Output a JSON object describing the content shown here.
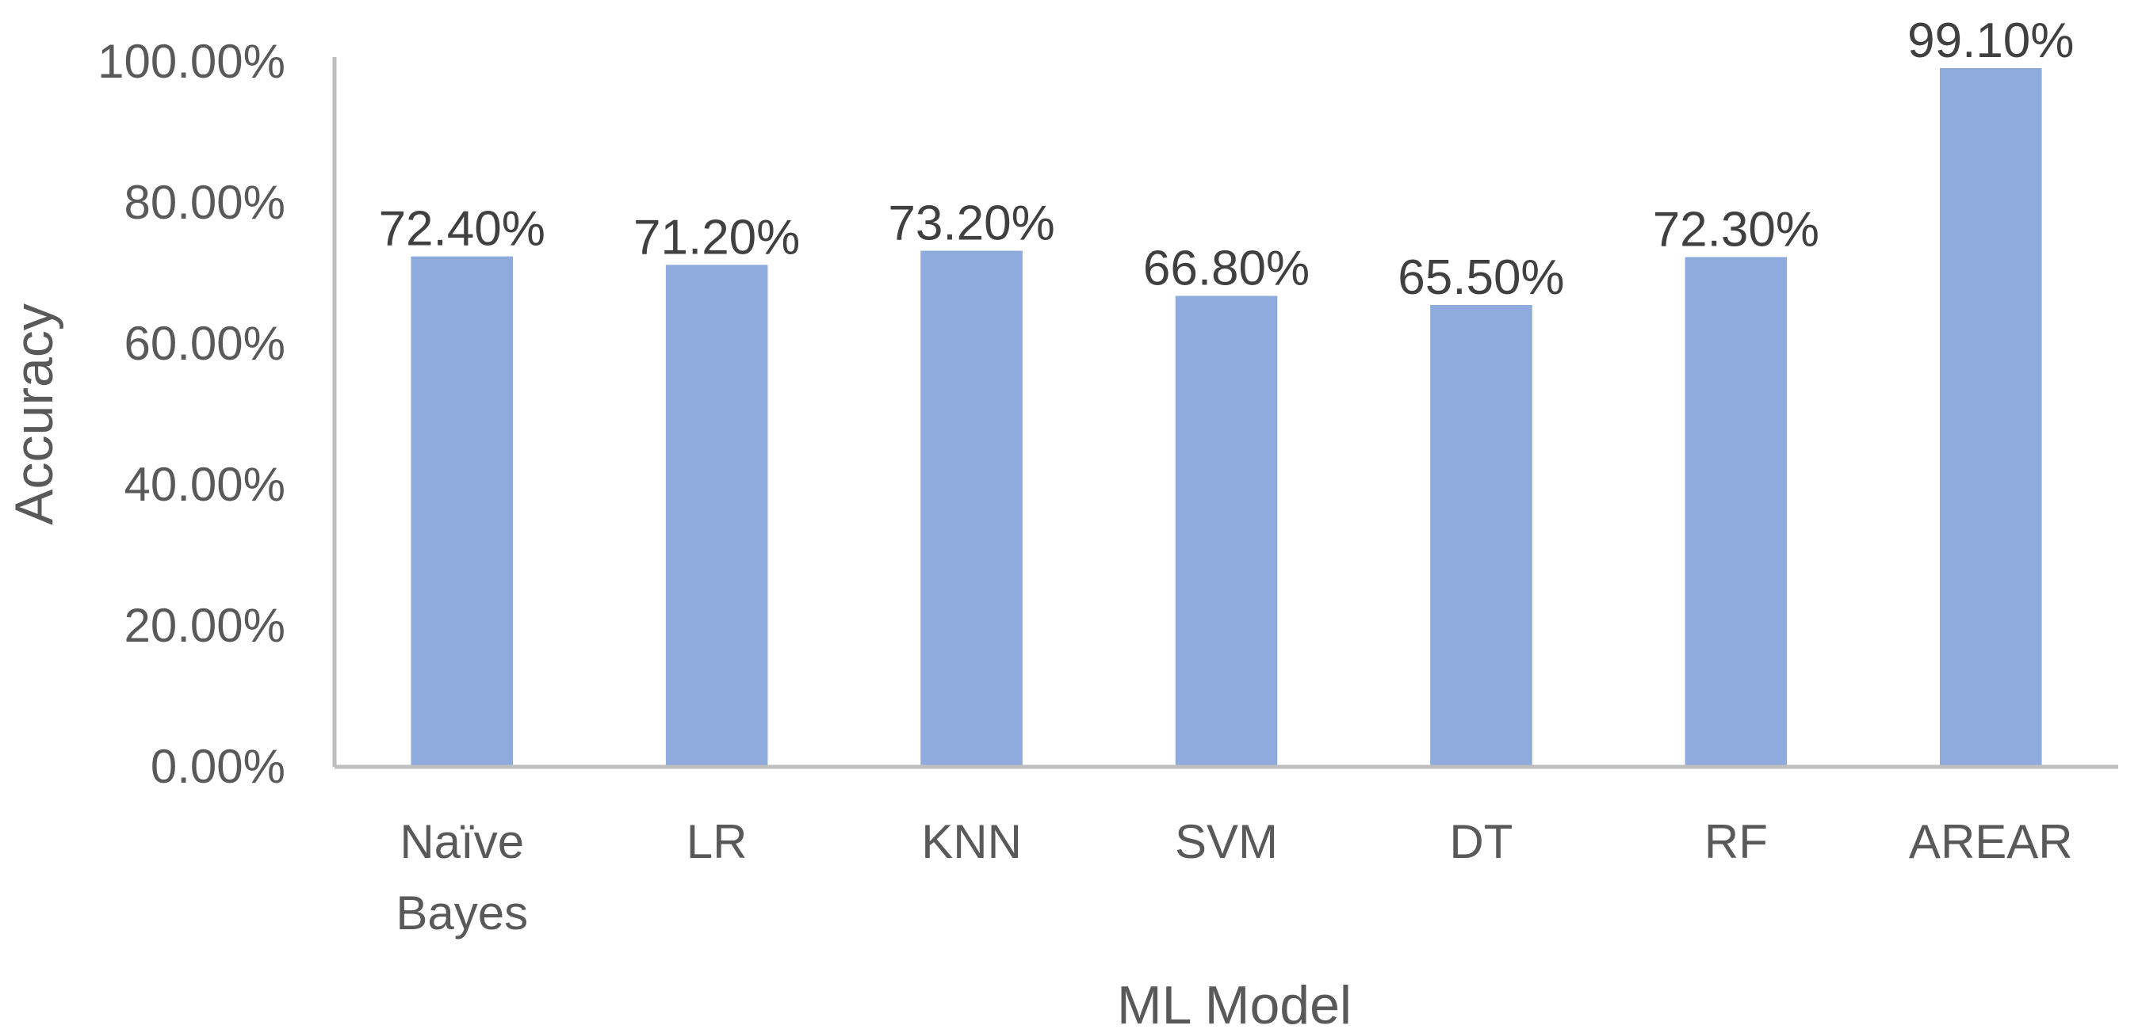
{
  "chart_data": {
    "type": "bar",
    "title": "",
    "xlabel": "ML Model",
    "ylabel": "Accuracy",
    "categories": [
      [
        "Naïve",
        "Bayes"
      ],
      [
        "LR"
      ],
      [
        "KNN"
      ],
      [
        "SVM"
      ],
      [
        "DT"
      ],
      [
        "RF"
      ],
      [
        "AREAR"
      ]
    ],
    "values": [
      72.4,
      71.2,
      73.2,
      66.8,
      65.5,
      72.3,
      99.1
    ],
    "data_labels": [
      "72.40%",
      "71.20%",
      "73.20%",
      "66.80%",
      "65.50%",
      "72.30%",
      "99.10%"
    ],
    "ylim": [
      0,
      100
    ],
    "yticks": [
      {
        "value": 0,
        "label": "0.00%"
      },
      {
        "value": 20,
        "label": "20.00%"
      },
      {
        "value": 40,
        "label": "40.00%"
      },
      {
        "value": 60,
        "label": "60.00%"
      },
      {
        "value": 80,
        "label": "80.00%"
      },
      {
        "value": 100,
        "label": "100.00%"
      }
    ],
    "grid": false,
    "legend": "none",
    "bar_color": "#8faadc"
  }
}
